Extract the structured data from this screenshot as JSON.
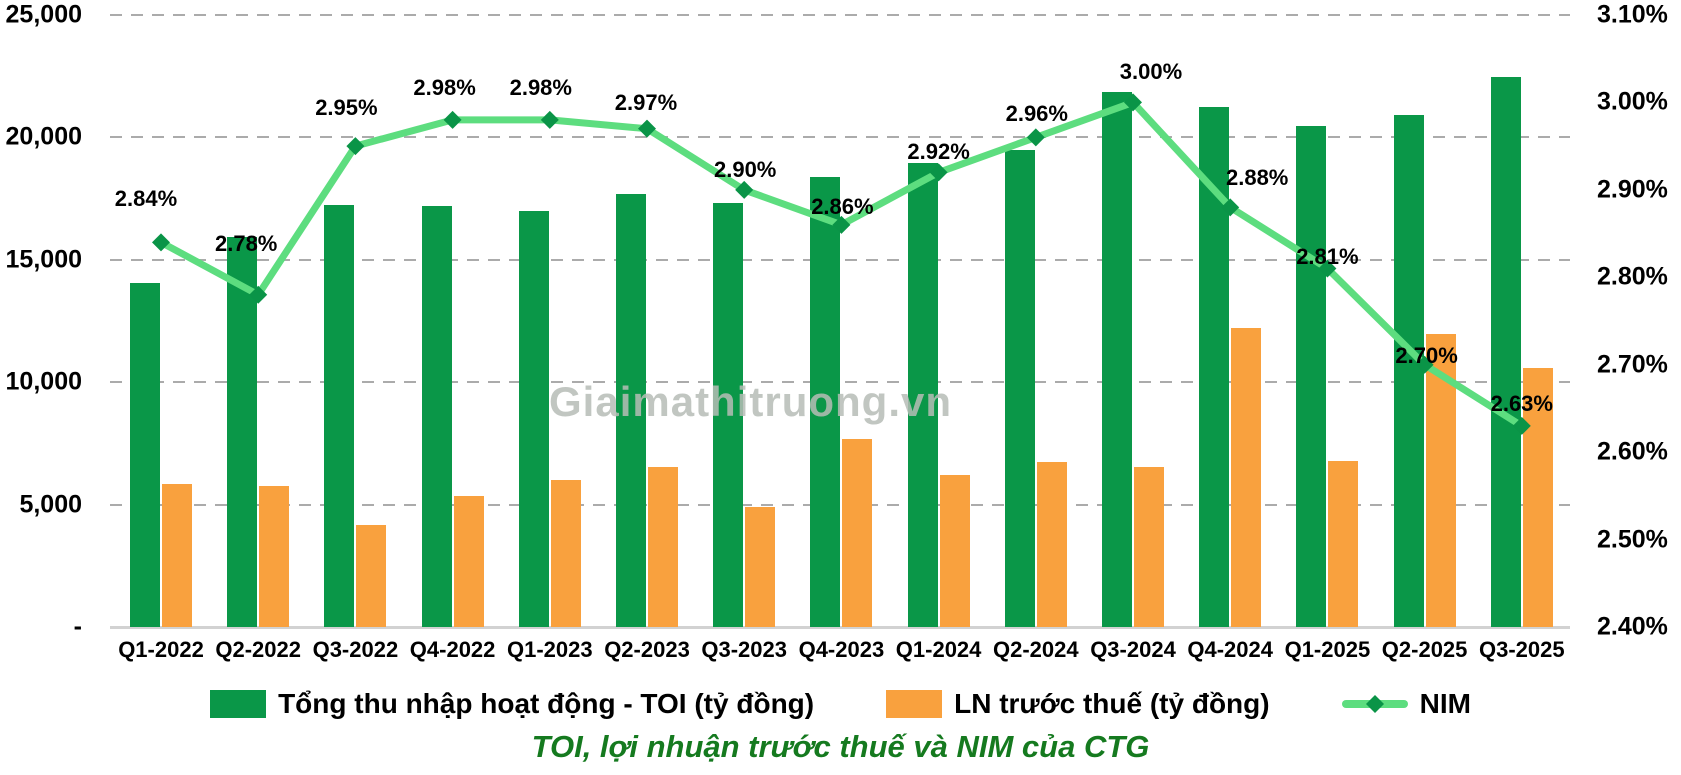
{
  "watermark": "Giaimathitruong.vn",
  "caption": "TOI, lợi nhuận trước thuế và NIM của CTG",
  "legend": {
    "toi": "Tổng thu nhập hoạt động - TOI (tỷ đồng)",
    "pbt": "LN trước thuế (tỷ đồng)",
    "nim": "NIM"
  },
  "chart_data": {
    "type": "combo-bar-line",
    "categories": [
      "Q1-2022",
      "Q2-2022",
      "Q3-2022",
      "Q4-2022",
      "Q1-2023",
      "Q2-2023",
      "Q3-2023",
      "Q4-2023",
      "Q1-2024",
      "Q2-2024",
      "Q3-2024",
      "Q4-2024",
      "Q1-2025",
      "Q2-2025",
      "Q3-2025"
    ],
    "series": [
      {
        "name": "Tổng thu nhập hoạt động - TOI (tỷ đồng)",
        "type": "bar",
        "yaxis": "left",
        "color": "#0a9748",
        "values": [
          14050,
          15950,
          17250,
          17200,
          17000,
          17700,
          17300,
          18400,
          18950,
          19500,
          21850,
          21250,
          20450,
          20900,
          22450
        ]
      },
      {
        "name": "LN trước thuế (tỷ đồng)",
        "type": "bar",
        "yaxis": "left",
        "color": "#f9a13e",
        "values": [
          5850,
          5750,
          4150,
          5350,
          6000,
          6550,
          4900,
          7700,
          6200,
          6750,
          6550,
          12200,
          6800,
          11950,
          10600
        ]
      },
      {
        "name": "NIM",
        "type": "line",
        "yaxis": "right",
        "color": "#5ddd7f",
        "marker_color": "#0a9447",
        "values": [
          2.84,
          2.78,
          2.95,
          2.98,
          2.98,
          2.97,
          2.9,
          2.86,
          2.92,
          2.96,
          3.0,
          2.88,
          2.81,
          2.7,
          2.63
        ],
        "labels": [
          "2.84%",
          "2.78%",
          "2.95%",
          "2.98%",
          "2.98%",
          "2.97%",
          "2.90%",
          "2.86%",
          "2.92%",
          "2.96%",
          "3.00%",
          "2.88%",
          "2.81%",
          "2.70%",
          "2.63%"
        ]
      }
    ],
    "left_axis": {
      "min": 0,
      "max": 25000,
      "ticks": [
        "25,000",
        "20,000",
        "15,000",
        "10,000",
        "5,000",
        "-"
      ]
    },
    "right_axis": {
      "min": 2.4,
      "max": 3.1,
      "ticks": [
        "3.10%",
        "3.00%",
        "2.90%",
        "2.80%",
        "2.70%",
        "2.60%",
        "2.50%",
        "2.40%"
      ]
    },
    "grid": "horizontal-dashed",
    "legend_position": "bottom"
  }
}
